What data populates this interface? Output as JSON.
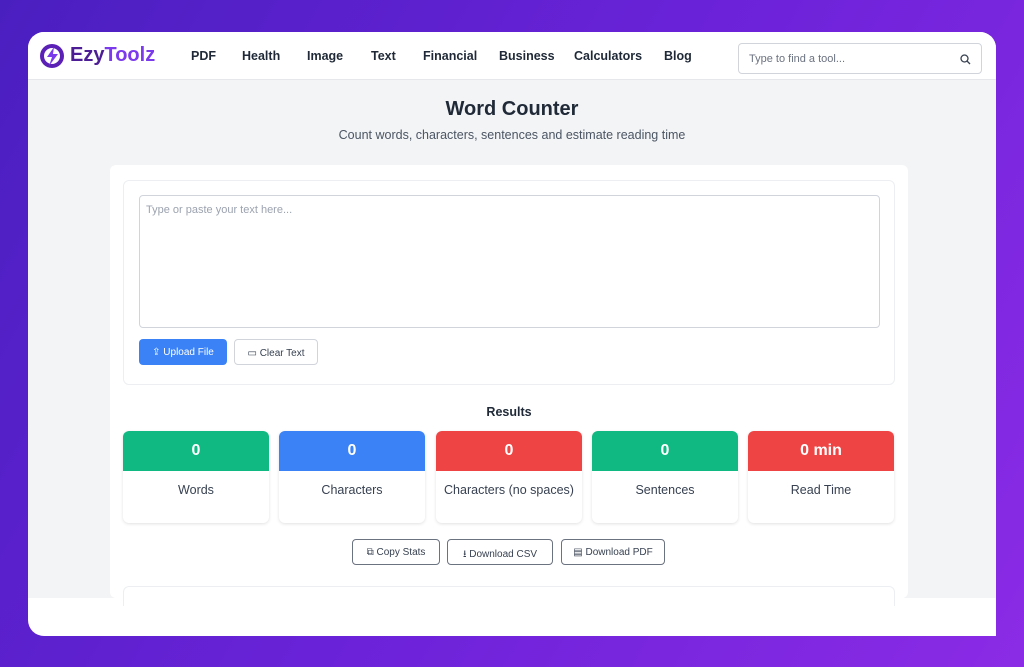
{
  "header": {
    "logo": {
      "part1": "Ezy",
      "part2": "Toolz"
    },
    "nav": [
      "PDF",
      "Health",
      "Image",
      "Text",
      "Financial",
      "Business",
      "Calculators",
      "Blog"
    ],
    "search_placeholder": "Type to find a tool..."
  },
  "main": {
    "title": "Word Counter",
    "subtitle": "Count words, characters, sentences and estimate reading time",
    "textarea_placeholder": "Type or paste your text here...",
    "buttons": [
      "Upload File",
      "Clear Text"
    ],
    "results_heading": "Results",
    "stats": [
      {
        "value": "0",
        "label": "Words"
      },
      {
        "value": "0",
        "label": "Characters"
      },
      {
        "value": "0",
        "label": "Characters (no spaces)"
      },
      {
        "value": "0",
        "label": "Sentences"
      },
      {
        "value": "0 min",
        "label": "Read Time"
      }
    ],
    "actions": [
      "Copy Stats",
      "Download CSV",
      "Download PDF"
    ]
  }
}
